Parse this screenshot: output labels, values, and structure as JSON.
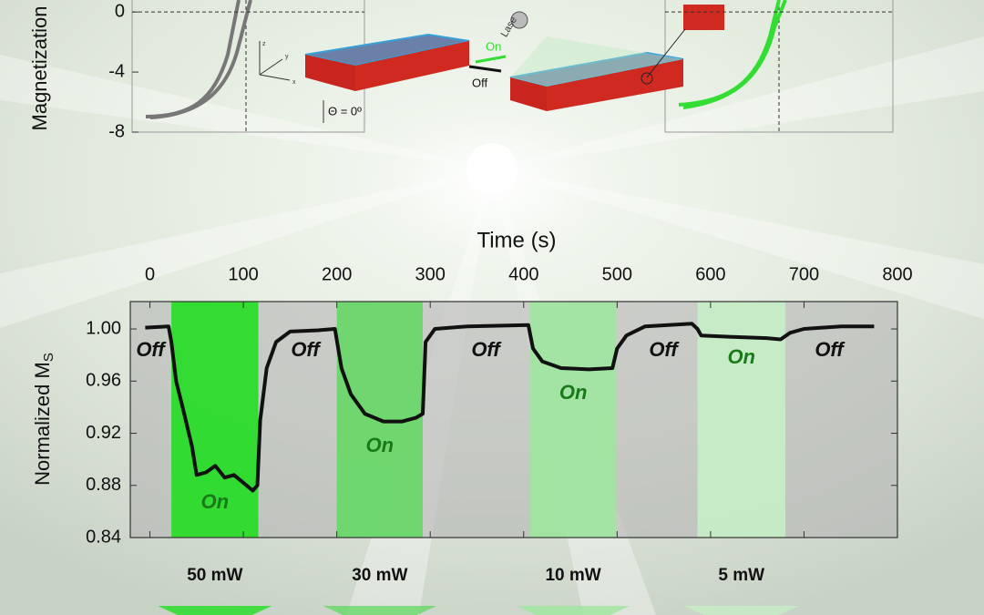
{
  "chart_data": [
    {
      "type": "axes-only",
      "ylabel": "Magnetization",
      "ylim": [
        -8,
        0.92
      ],
      "yticks": [
        0,
        -4,
        -8
      ]
    },
    {
      "type": "line",
      "xlabel": "Time (s)",
      "ylabel": "Normalized M",
      "ylabel_sub": "S",
      "xlim": [
        -21,
        800
      ],
      "xticks": [
        0,
        100,
        200,
        300,
        400,
        500,
        600,
        700,
        800
      ],
      "ylim": [
        0.84,
        1.021
      ],
      "yticks": [
        {
          "value": 0.84,
          "label": "0.84"
        },
        {
          "value": 0.88,
          "label": "0.88"
        },
        {
          "value": 0.92,
          "label": "0.92"
        },
        {
          "value": 0.96,
          "label": "0.96"
        },
        {
          "value": 1.0,
          "label": "1.00"
        }
      ],
      "series": [
        {
          "name": "Normalized MS",
          "color": "#111111",
          "x": [
            -5,
            20,
            23,
            28,
            35,
            45,
            50,
            60,
            70,
            80,
            90,
            100,
            110,
            115,
            118,
            125,
            135,
            150,
            180,
            198,
            205,
            215,
            230,
            250,
            270,
            285,
            292,
            295,
            305,
            340,
            405,
            410,
            420,
            440,
            470,
            495,
            500,
            510,
            530,
            580,
            586,
            590,
            620,
            660,
            675,
            685,
            700,
            740,
            775
          ],
          "values": [
            1.001,
            1.002,
            0.99,
            0.96,
            0.94,
            0.91,
            0.888,
            0.89,
            0.895,
            0.886,
            0.888,
            0.882,
            0.876,
            0.88,
            0.93,
            0.97,
            0.99,
            0.998,
            0.999,
            1.0,
            0.97,
            0.95,
            0.935,
            0.929,
            0.929,
            0.932,
            0.935,
            0.99,
            1.0,
            1.002,
            1.003,
            0.985,
            0.975,
            0.97,
            0.969,
            0.97,
            0.985,
            0.995,
            1.002,
            1.004,
            1.0,
            0.995,
            0.994,
            0.993,
            0.992,
            0.997,
            1.0,
            1.002,
            1.002
          ]
        }
      ],
      "regions": [
        {
          "start": 23,
          "end": 116,
          "label": "On",
          "power": "50 mW",
          "color": "#22dd22"
        },
        {
          "start": 200,
          "end": 292,
          "label": "On",
          "power": "30 mW",
          "color": "#66d866"
        },
        {
          "start": 407,
          "end": 499,
          "label": "On",
          "power": "10 mW",
          "color": "#9fe69f"
        },
        {
          "start": 586,
          "end": 680,
          "label": "On",
          "power": "5 mW",
          "color": "#c6eec6"
        }
      ],
      "off_labels": [
        "Off",
        "Off",
        "Off",
        "Off",
        "Off"
      ]
    }
  ],
  "diagram": {
    "on": "On",
    "off": "Off",
    "angle": "Θ = 0º",
    "laser": "Lase",
    "axis_z": "z",
    "axis_y": "y",
    "axis_x": "x"
  }
}
